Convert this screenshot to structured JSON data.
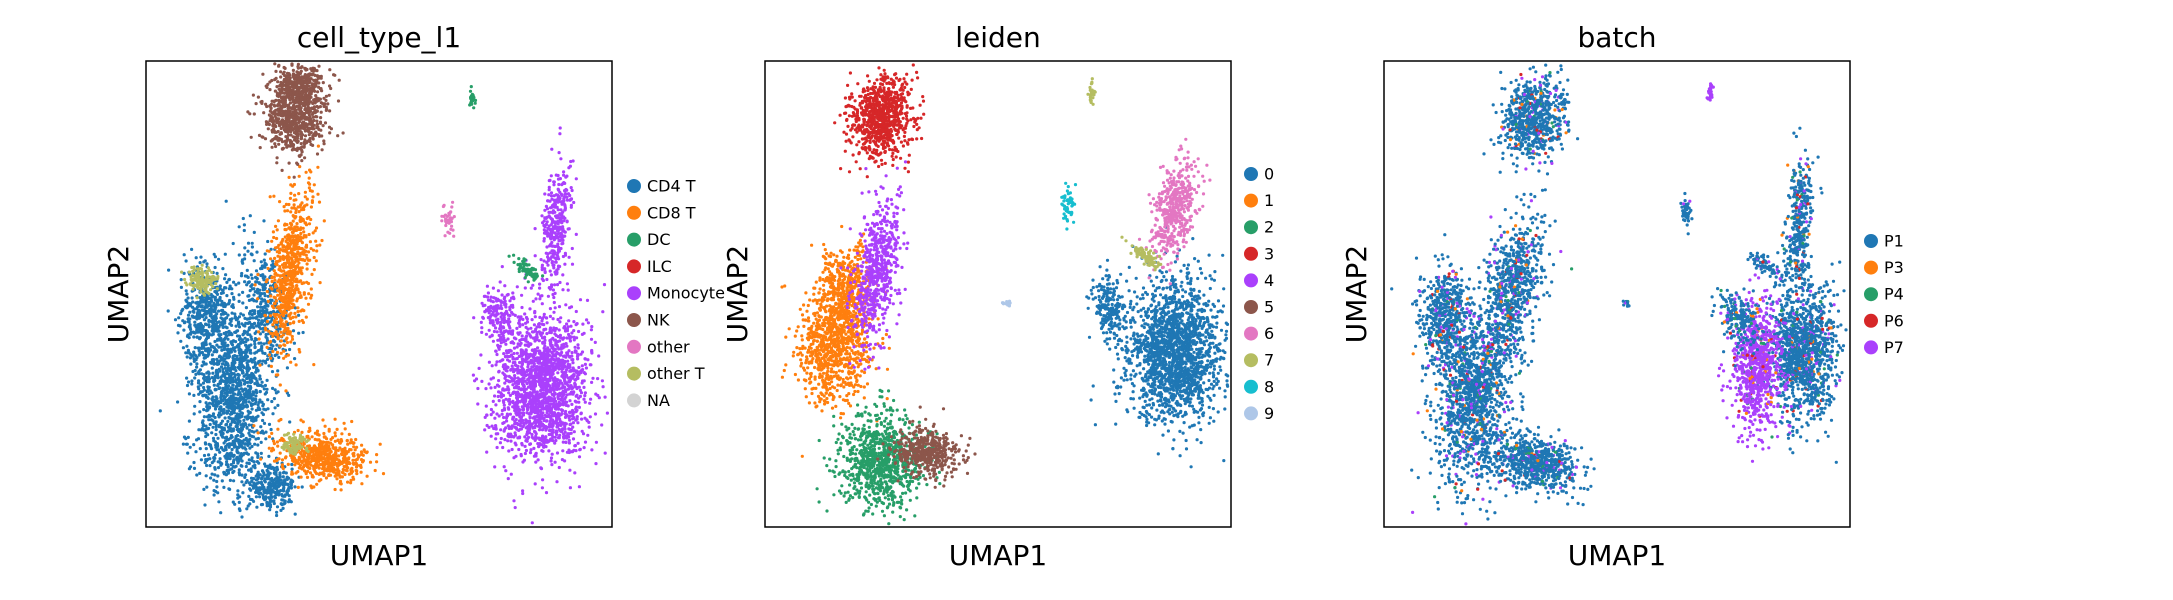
{
  "chart_data": [
    {
      "type": "scatter",
      "title": "cell_type_l1",
      "xlabel": "UMAP1",
      "ylabel": "UMAP2",
      "ticks": "none",
      "legend": "right",
      "categories": [
        {
          "name": "CD4 T",
          "color": "#1f77b4"
        },
        {
          "name": "CD8 T",
          "color": "#ff7f0e"
        },
        {
          "name": "DC",
          "color": "#279e68"
        },
        {
          "name": "ILC",
          "color": "#d62728"
        },
        {
          "name": "Monocyte",
          "color": "#aa40fc"
        },
        {
          "name": "NK",
          "color": "#8c564b"
        },
        {
          "name": "other",
          "color": "#e377c2"
        },
        {
          "name": "other T",
          "color": "#b5bd61"
        },
        {
          "name": "NA",
          "color": "#d3d3d3"
        }
      ]
    },
    {
      "type": "scatter",
      "title": "leiden",
      "xlabel": "UMAP1",
      "ylabel": "UMAP2",
      "ticks": "none",
      "legend": "right",
      "categories": [
        {
          "name": "0",
          "color": "#1f77b4"
        },
        {
          "name": "1",
          "color": "#ff7f0e"
        },
        {
          "name": "2",
          "color": "#279e68"
        },
        {
          "name": "3",
          "color": "#d62728"
        },
        {
          "name": "4",
          "color": "#aa40fc"
        },
        {
          "name": "5",
          "color": "#8c564b"
        },
        {
          "name": "6",
          "color": "#e377c2"
        },
        {
          "name": "7",
          "color": "#b5bd61"
        },
        {
          "name": "8",
          "color": "#17becf"
        },
        {
          "name": "9",
          "color": "#aec7e8"
        }
      ]
    },
    {
      "type": "scatter",
      "title": "batch",
      "xlabel": "UMAP1",
      "ylabel": "UMAP2",
      "ticks": "none",
      "legend": "right",
      "categories": [
        {
          "name": "P1",
          "color": "#1f77b4"
        },
        {
          "name": "P3",
          "color": "#ff7f0e"
        },
        {
          "name": "P4",
          "color": "#279e68"
        },
        {
          "name": "P6",
          "color": "#d62728"
        },
        {
          "name": "P7",
          "color": "#aa40fc"
        }
      ]
    }
  ]
}
